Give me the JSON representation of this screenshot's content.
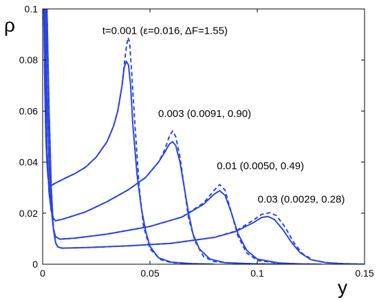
{
  "chart_data": {
    "type": "line",
    "ylabel": "ρ",
    "xlabel": "y",
    "xlim": [
      0,
      0.15
    ],
    "ylim": [
      0,
      0.1
    ],
    "x_ticks": [
      {
        "value": 0,
        "label": "0"
      },
      {
        "value": 0.05,
        "label": "0.05"
      },
      {
        "value": 0.1,
        "label": "0.1"
      },
      {
        "value": 0.15,
        "label": "0.15"
      }
    ],
    "y_ticks": [
      {
        "value": 0,
        "label": "0"
      },
      {
        "value": 0.02,
        "label": "0.02"
      },
      {
        "value": 0.04,
        "label": "0.04"
      },
      {
        "value": 0.06,
        "label": "0.06"
      },
      {
        "value": 0.08,
        "label": "0.08"
      },
      {
        "value": 0.1,
        "label": "0.1"
      }
    ],
    "grid": false,
    "line_color": "#2a45e0",
    "curves": [
      {
        "style": "solid",
        "points": [
          [
            0.0005,
            0.1
          ],
          [
            0.001,
            0.07
          ],
          [
            0.0015,
            0.05
          ],
          [
            0.002,
            0.04
          ],
          [
            0.0025,
            0.034
          ],
          [
            0.003,
            0.0312
          ],
          [
            0.004,
            0.0308
          ],
          [
            0.006,
            0.0318
          ],
          [
            0.01,
            0.0335
          ],
          [
            0.015,
            0.0355
          ],
          [
            0.02,
            0.038
          ],
          [
            0.025,
            0.042
          ],
          [
            0.03,
            0.048
          ],
          [
            0.033,
            0.054
          ],
          [
            0.035,
            0.06
          ],
          [
            0.037,
            0.07
          ],
          [
            0.038,
            0.077
          ],
          [
            0.039,
            0.0795
          ],
          [
            0.04,
            0.078
          ],
          [
            0.041,
            0.07
          ],
          [
            0.042,
            0.055
          ],
          [
            0.044,
            0.035
          ],
          [
            0.046,
            0.022
          ],
          [
            0.048,
            0.013
          ],
          [
            0.05,
            0.007
          ],
          [
            0.054,
            0.0025
          ],
          [
            0.06,
            0.0008
          ],
          [
            0.07,
            0.0002
          ],
          [
            0.08,
            0
          ]
        ]
      },
      {
        "style": "dashed",
        "points": [
          [
            0.0005,
            0.1
          ],
          [
            0.001,
            0.07
          ],
          [
            0.0015,
            0.05
          ],
          [
            0.002,
            0.04
          ],
          [
            0.0025,
            0.034
          ],
          [
            0.003,
            0.0312
          ],
          [
            0.004,
            0.0308
          ],
          [
            0.006,
            0.0318
          ],
          [
            0.01,
            0.0335
          ],
          [
            0.015,
            0.0355
          ],
          [
            0.02,
            0.038
          ],
          [
            0.025,
            0.042
          ],
          [
            0.03,
            0.048
          ],
          [
            0.033,
            0.054
          ],
          [
            0.035,
            0.06
          ],
          [
            0.037,
            0.07
          ],
          [
            0.038,
            0.078
          ],
          [
            0.039,
            0.085
          ],
          [
            0.0398,
            0.0888
          ],
          [
            0.0405,
            0.087
          ],
          [
            0.0415,
            0.075
          ],
          [
            0.043,
            0.055
          ],
          [
            0.045,
            0.03
          ],
          [
            0.047,
            0.015
          ],
          [
            0.05,
            0.006
          ],
          [
            0.055,
            0.0018
          ],
          [
            0.06,
            0.0006
          ],
          [
            0.07,
            0.0002
          ],
          [
            0.08,
            0
          ]
        ]
      },
      {
        "style": "solid",
        "points": [
          [
            0.001,
            0.1
          ],
          [
            0.0015,
            0.07
          ],
          [
            0.002,
            0.045
          ],
          [
            0.003,
            0.028
          ],
          [
            0.004,
            0.021
          ],
          [
            0.005,
            0.018
          ],
          [
            0.006,
            0.017
          ],
          [
            0.01,
            0.0178
          ],
          [
            0.02,
            0.0205
          ],
          [
            0.03,
            0.0245
          ],
          [
            0.04,
            0.0292
          ],
          [
            0.048,
            0.034
          ],
          [
            0.054,
            0.04
          ],
          [
            0.057,
            0.044
          ],
          [
            0.059,
            0.047
          ],
          [
            0.0605,
            0.048
          ],
          [
            0.062,
            0.0465
          ],
          [
            0.064,
            0.04
          ],
          [
            0.066,
            0.03
          ],
          [
            0.068,
            0.02
          ],
          [
            0.07,
            0.012
          ],
          [
            0.073,
            0.006
          ],
          [
            0.078,
            0.002
          ],
          [
            0.085,
            0.0006
          ],
          [
            0.1,
            0.0001
          ],
          [
            0.11,
            0
          ]
        ]
      },
      {
        "style": "dashed",
        "points": [
          [
            0.001,
            0.1
          ],
          [
            0.0015,
            0.07
          ],
          [
            0.002,
            0.045
          ],
          [
            0.003,
            0.028
          ],
          [
            0.004,
            0.021
          ],
          [
            0.005,
            0.018
          ],
          [
            0.006,
            0.017
          ],
          [
            0.01,
            0.0178
          ],
          [
            0.02,
            0.0205
          ],
          [
            0.03,
            0.0245
          ],
          [
            0.04,
            0.0292
          ],
          [
            0.048,
            0.034
          ],
          [
            0.054,
            0.04
          ],
          [
            0.057,
            0.045
          ],
          [
            0.059,
            0.05
          ],
          [
            0.0605,
            0.0522
          ],
          [
            0.062,
            0.05
          ],
          [
            0.064,
            0.042
          ],
          [
            0.066,
            0.03
          ],
          [
            0.068,
            0.018
          ],
          [
            0.071,
            0.009
          ],
          [
            0.075,
            0.003
          ],
          [
            0.08,
            0.001
          ],
          [
            0.09,
            0.0003
          ],
          [
            0.11,
            0
          ]
        ]
      },
      {
        "style": "solid",
        "points": [
          [
            0.0015,
            0.1
          ],
          [
            0.002,
            0.07
          ],
          [
            0.003,
            0.04
          ],
          [
            0.004,
            0.022
          ],
          [
            0.005,
            0.014
          ],
          [
            0.006,
            0.0108
          ],
          [
            0.008,
            0.0098
          ],
          [
            0.015,
            0.0102
          ],
          [
            0.03,
            0.0118
          ],
          [
            0.05,
            0.0148
          ],
          [
            0.065,
            0.0185
          ],
          [
            0.075,
            0.0235
          ],
          [
            0.08,
            0.0275
          ],
          [
            0.0825,
            0.0288
          ],
          [
            0.085,
            0.027
          ],
          [
            0.088,
            0.02
          ],
          [
            0.091,
            0.012
          ],
          [
            0.095,
            0.0055
          ],
          [
            0.1,
            0.002
          ],
          [
            0.11,
            0.0005
          ],
          [
            0.12,
            0.0001
          ],
          [
            0.13,
            0
          ]
        ]
      },
      {
        "style": "dashed",
        "points": [
          [
            0.0015,
            0.1
          ],
          [
            0.002,
            0.07
          ],
          [
            0.003,
            0.04
          ],
          [
            0.004,
            0.022
          ],
          [
            0.005,
            0.014
          ],
          [
            0.006,
            0.0108
          ],
          [
            0.008,
            0.0098
          ],
          [
            0.015,
            0.0102
          ],
          [
            0.03,
            0.0118
          ],
          [
            0.05,
            0.0148
          ],
          [
            0.065,
            0.0185
          ],
          [
            0.075,
            0.024
          ],
          [
            0.08,
            0.029
          ],
          [
            0.0825,
            0.0312
          ],
          [
            0.085,
            0.029
          ],
          [
            0.088,
            0.02
          ],
          [
            0.091,
            0.011
          ],
          [
            0.095,
            0.0045
          ],
          [
            0.1,
            0.0015
          ],
          [
            0.11,
            0.0004
          ],
          [
            0.12,
            0.0001
          ],
          [
            0.13,
            0
          ]
        ]
      },
      {
        "style": "solid",
        "points": [
          [
            0.002,
            0.1
          ],
          [
            0.003,
            0.06
          ],
          [
            0.004,
            0.03
          ],
          [
            0.005,
            0.014
          ],
          [
            0.006,
            0.0085
          ],
          [
            0.007,
            0.0068
          ],
          [
            0.009,
            0.0063
          ],
          [
            0.02,
            0.0065
          ],
          [
            0.04,
            0.0072
          ],
          [
            0.06,
            0.0082
          ],
          [
            0.08,
            0.0105
          ],
          [
            0.09,
            0.0128
          ],
          [
            0.098,
            0.0162
          ],
          [
            0.102,
            0.0183
          ],
          [
            0.105,
            0.0187
          ],
          [
            0.108,
            0.0175
          ],
          [
            0.112,
            0.0135
          ],
          [
            0.116,
            0.0085
          ],
          [
            0.12,
            0.0045
          ],
          [
            0.125,
            0.0018
          ],
          [
            0.132,
            0.0006
          ],
          [
            0.14,
            0.0002
          ],
          [
            0.15,
            0
          ]
        ]
      },
      {
        "style": "dashed",
        "points": [
          [
            0.002,
            0.1
          ],
          [
            0.003,
            0.06
          ],
          [
            0.004,
            0.03
          ],
          [
            0.005,
            0.014
          ],
          [
            0.006,
            0.0085
          ],
          [
            0.007,
            0.0068
          ],
          [
            0.009,
            0.0063
          ],
          [
            0.02,
            0.0065
          ],
          [
            0.04,
            0.0072
          ],
          [
            0.06,
            0.0082
          ],
          [
            0.08,
            0.0105
          ],
          [
            0.09,
            0.013
          ],
          [
            0.098,
            0.0172
          ],
          [
            0.102,
            0.0195
          ],
          [
            0.106,
            0.0202
          ],
          [
            0.109,
            0.019
          ],
          [
            0.113,
            0.0145
          ],
          [
            0.117,
            0.0085
          ],
          [
            0.121,
            0.0042
          ],
          [
            0.126,
            0.0016
          ],
          [
            0.133,
            0.0005
          ],
          [
            0.14,
            0.0002
          ],
          [
            0.15,
            0
          ]
        ]
      }
    ],
    "annotations": [
      {
        "text": "t=0.001 (ε=0.016, ΔF=1.55)",
        "x": 0.057,
        "y": 0.0915
      },
      {
        "text": "0.003 (0.0091, 0.90)",
        "x": 0.0755,
        "y": 0.059
      },
      {
        "text": "0.01 (0.0050, 0.49)",
        "x": 0.1015,
        "y": 0.0385
      },
      {
        "text": "0.03 (0.0029, 0.28)",
        "x": 0.1205,
        "y": 0.0255
      }
    ]
  }
}
